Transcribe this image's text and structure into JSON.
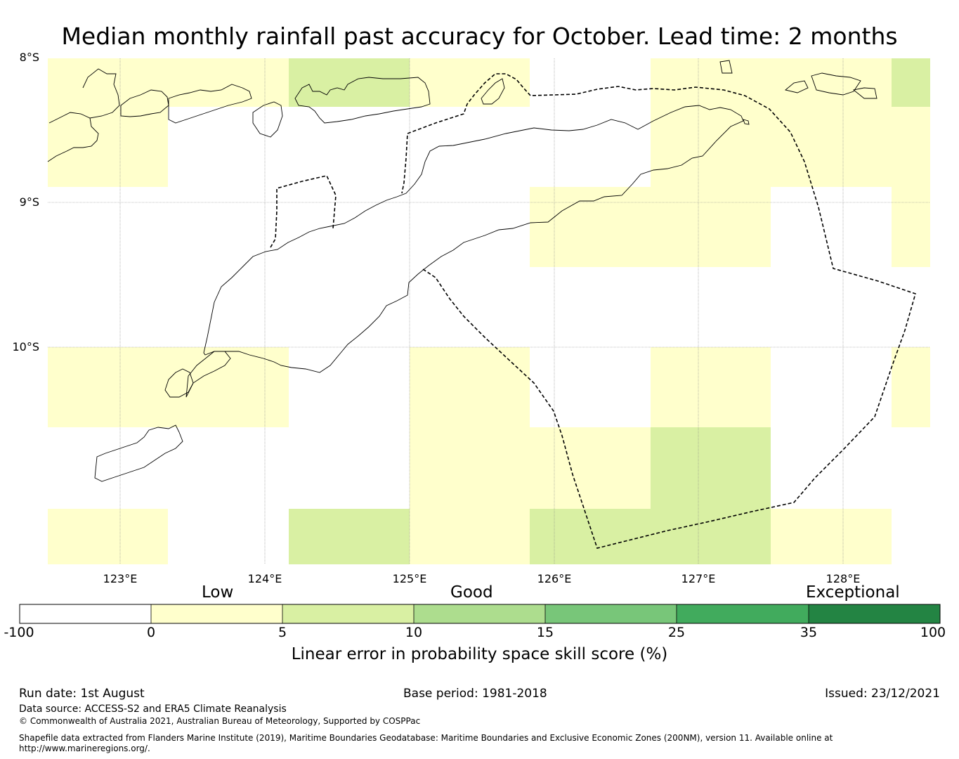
{
  "title": "Median monthly rainfall past accuracy for October. Lead time: 2 months",
  "map": {
    "lat_labels": [
      "8°S",
      "9°S",
      "10°S"
    ],
    "lon_labels": [
      "123°E",
      "124°E",
      "125°E",
      "126°E",
      "127°E",
      "128°E"
    ],
    "extent": {
      "lon_min": 122.5,
      "lon_max": 128.6,
      "lat_max": -8.0,
      "lat_min": -11.5
    }
  },
  "colorbar": {
    "categories": [
      "Low",
      "Good",
      "Exceptional"
    ],
    "ticks": [
      "-100",
      "0",
      "5",
      "10",
      "15",
      "25",
      "35",
      "100"
    ],
    "colors": [
      "#ffffff",
      "#ffffcc",
      "#d9f0a3",
      "#addd8e",
      "#78c679",
      "#41ab5d",
      "#238443"
    ],
    "label": "Linear error in probability space skill score (%)"
  },
  "footer": {
    "run_date": "Run date: 1st August",
    "base_period": "Base period: 1981-2018",
    "issued": "Issued: 23/12/2021",
    "data_source": "Data source: ACCESS-S2 and ERA5 Climate Reanalysis",
    "copyright": "© Commonwealth of Australia 2021, Australian Bureau of Meteorology, Supported by COSPPac",
    "shapefile_1": "Shapefile data extracted from Flanders Marine Institute (2019), Maritime Boundaries Geodatabase: Maritime Boundaries and Exclusive Economic Zones (200NM), version 11. Available online at",
    "shapefile_2": "http://www.marineregions.org/."
  }
}
